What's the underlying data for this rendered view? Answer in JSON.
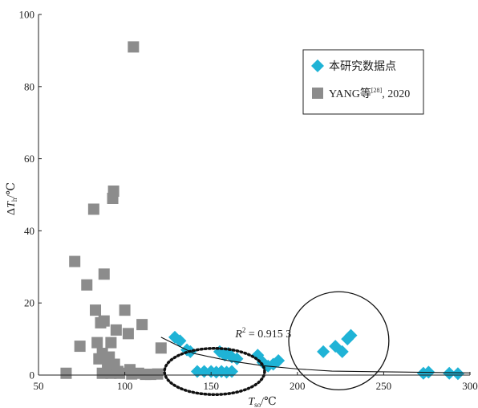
{
  "chart_data": {
    "type": "scatter",
    "xlim": [
      50,
      300
    ],
    "ylim": [
      0,
      100
    ],
    "x_ticks": [
      "50",
      "100",
      "150",
      "200",
      "250",
      "300"
    ],
    "y_ticks": [
      "0",
      "20",
      "40",
      "60",
      "80",
      "100"
    ],
    "xlabel": {
      "main": "T",
      "sub": "so",
      "unit": "/℃"
    },
    "ylabel": {
      "prefix": "Δ",
      "main": "T",
      "sub": "h",
      "unit": "/℃"
    },
    "grid": false,
    "legend_placement": "top-right",
    "annotation": {
      "label": "R",
      "sup": "2",
      "value": " = 0.915 3",
      "x": 164,
      "y": 10.5
    },
    "series": [
      {
        "name": "本研究数据点",
        "name_sup": "",
        "name_suffix": "",
        "marker": "diamond",
        "color": "#1fb3d6",
        "points": [
          [
            129,
            10.5
          ],
          [
            132,
            9.5
          ],
          [
            136,
            7
          ],
          [
            138,
            6.5
          ],
          [
            142,
            1
          ],
          [
            146,
            1
          ],
          [
            150,
            1
          ],
          [
            153,
            0.8
          ],
          [
            156,
            1
          ],
          [
            159,
            0.8
          ],
          [
            162,
            1
          ],
          [
            155,
            6.5
          ],
          [
            158,
            5.5
          ],
          [
            160,
            6
          ],
          [
            162,
            5
          ],
          [
            165,
            4.5
          ],
          [
            177,
            5.5
          ],
          [
            180,
            3.5
          ],
          [
            183,
            2.5
          ],
          [
            186,
            3
          ],
          [
            189,
            4
          ],
          [
            215,
            6.5
          ],
          [
            222,
            8
          ],
          [
            226,
            6.5
          ],
          [
            229,
            10
          ],
          [
            231,
            11
          ],
          [
            273,
            0.5
          ],
          [
            276,
            0.8
          ],
          [
            288,
            0.5
          ],
          [
            293,
            0.4
          ]
        ]
      },
      {
        "name": "YANG等",
        "name_sup": "[28]",
        "name_suffix": ", 2020",
        "marker": "square",
        "color": "#8c8c8c",
        "points": [
          [
            66,
            0.5
          ],
          [
            71,
            31.5
          ],
          [
            74,
            8
          ],
          [
            78,
            25
          ],
          [
            82,
            46
          ],
          [
            83,
            18
          ],
          [
            84,
            9
          ],
          [
            85,
            4.5
          ],
          [
            86,
            14.5
          ],
          [
            87,
            0.5
          ],
          [
            87,
            6
          ],
          [
            88,
            28
          ],
          [
            88,
            15
          ],
          [
            90,
            2
          ],
          [
            91,
            5
          ],
          [
            92,
            9
          ],
          [
            92,
            0.5
          ],
          [
            93,
            49
          ],
          [
            93.5,
            51
          ],
          [
            94,
            3
          ],
          [
            95,
            12.5
          ],
          [
            96,
            1
          ],
          [
            97,
            0.5
          ],
          [
            100,
            18
          ],
          [
            102,
            11.5
          ],
          [
            103,
            1.5
          ],
          [
            104,
            0.3
          ],
          [
            105,
            91
          ],
          [
            108,
            0.5
          ],
          [
            110,
            14
          ],
          [
            112,
            0.2
          ],
          [
            115,
            0.2
          ],
          [
            119,
            0.3
          ],
          [
            121,
            7.5
          ]
        ]
      }
    ],
    "fit_line": [
      [
        121,
        10.5
      ],
      [
        140,
        6
      ],
      [
        160,
        4
      ],
      [
        180,
        2.6
      ],
      [
        200,
        1.7
      ],
      [
        220,
        1.1
      ],
      [
        250,
        0.9
      ],
      [
        300,
        0.6
      ]
    ],
    "highlights": [
      {
        "style": "dotted",
        "cx": 152,
        "cy": 1,
        "rx": 14.5,
        "ry": 3.2
      },
      {
        "style": "solid",
        "cx": 224,
        "cy": 9.5,
        "rx": 14.5,
        "ry": 6.8
      }
    ]
  }
}
